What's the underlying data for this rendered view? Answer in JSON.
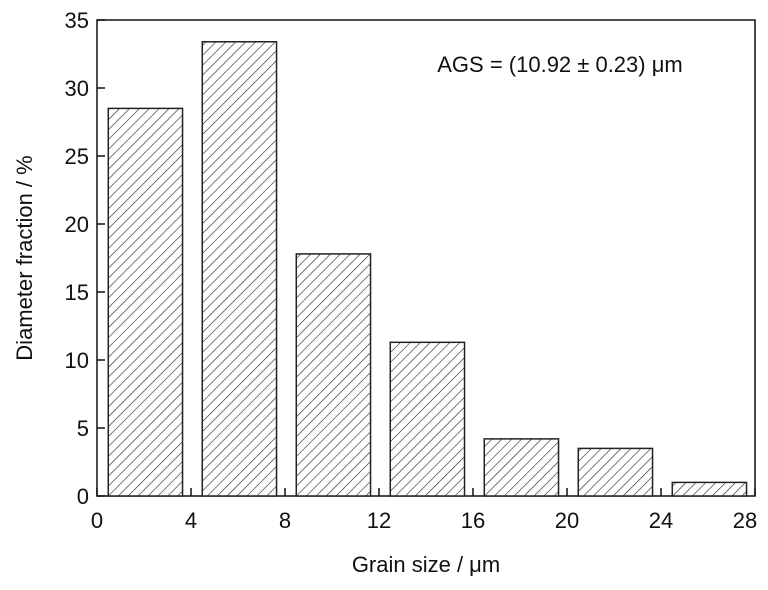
{
  "chart_data": {
    "type": "histogram",
    "annotation": "AGS = (10.92 ± 0.23) μm",
    "x_label": "Grain size / μm",
    "y_label": "Diameter fraction / %",
    "bins": [
      0,
      4,
      8,
      12,
      16,
      20,
      24,
      28
    ],
    "values": [
      28.5,
      33.4,
      17.8,
      11.3,
      4.2,
      3.5,
      1.0
    ],
    "color": "#222222",
    "xlim": [
      0,
      28
    ],
    "xticks": [
      0,
      4,
      8,
      12,
      16,
      20,
      24,
      28
    ],
    "ylim": [
      0,
      35
    ],
    "yticks": [
      0,
      5,
      10,
      15,
      20,
      25,
      30,
      35
    ]
  }
}
